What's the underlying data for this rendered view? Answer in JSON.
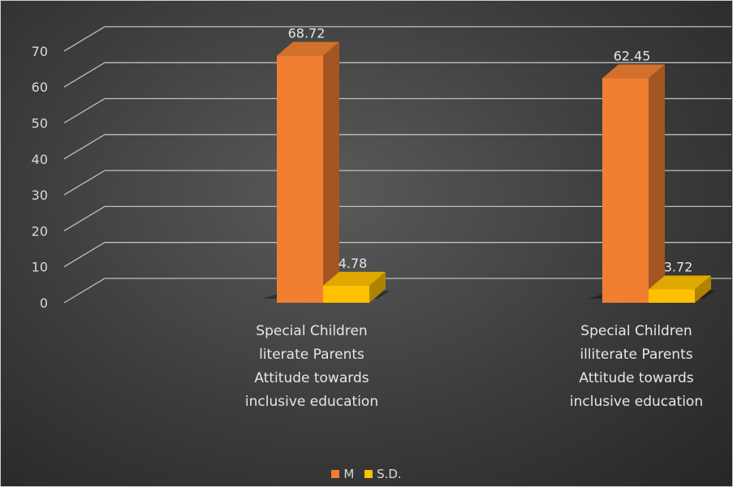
{
  "chart_data": {
    "type": "bar",
    "three_d": true,
    "categories": [
      [
        "Special Children",
        "literate Parents",
        "Attitude towards",
        "inclusive education"
      ],
      [
        "Special Children",
        "illiterate Parents",
        "Attitude towards",
        "inclusive education"
      ]
    ],
    "series": [
      {
        "name": "M",
        "values": [
          68.72,
          62.45
        ],
        "labels": [
          "68.72",
          "62.45"
        ],
        "color": "#f07f32"
      },
      {
        "name": "S.D.",
        "values": [
          4.78,
          3.72
        ],
        "labels": [
          "4.78",
          "3.72"
        ],
        "color": "#ffc000"
      }
    ],
    "ylim": [
      0,
      70
    ],
    "yticks": [
      "0",
      "10",
      "20",
      "30",
      "40",
      "50",
      "60",
      "70"
    ],
    "grid": true,
    "legend_position": "bottom",
    "colors": {
      "background": "#3a3a3a",
      "grid": "#bfbfbf",
      "text": "#d9d9d9"
    }
  }
}
